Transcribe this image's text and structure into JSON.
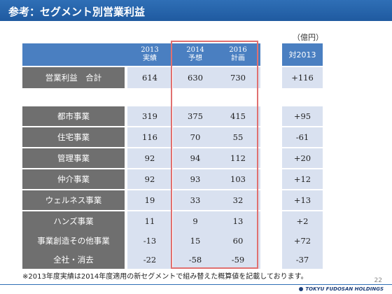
{
  "title": "参考：セグメント別営業利益",
  "unit": "（億円）",
  "columns": [
    {
      "year": "2013",
      "label": "実績"
    },
    {
      "year": "2014",
      "label": "予想"
    },
    {
      "year": "2016",
      "label": "計画"
    }
  ],
  "comparison_header": "対2013",
  "total": {
    "label": "営業利益　合計",
    "values": [
      "614",
      "630",
      "730"
    ],
    "diff": "+116"
  },
  "segments": [
    {
      "label": "都市事業",
      "values": [
        "319",
        "375",
        "415"
      ],
      "diff": "+95"
    },
    {
      "label": "住宅事業",
      "values": [
        "116",
        "70",
        "55"
      ],
      "diff": "-61"
    },
    {
      "label": "管理事業",
      "values": [
        "92",
        "94",
        "112"
      ],
      "diff": "+20"
    },
    {
      "label": "仲介事業",
      "values": [
        "92",
        "93",
        "103"
      ],
      "diff": "+12"
    },
    {
      "label": "ウェルネス事業",
      "values": [
        "19",
        "33",
        "32"
      ],
      "diff": "+13"
    },
    {
      "label": "ハンズ事業",
      "values": [
        "11",
        "9",
        "13"
      ],
      "diff": "+2"
    },
    {
      "label": "事業創造その他事業",
      "values": [
        "-13",
        "15",
        "60"
      ],
      "diff": "+72"
    },
    {
      "label": "全社・消去",
      "values": [
        "-22",
        "-58",
        "-59"
      ],
      "diff": "-37"
    }
  ],
  "footnote": "※2013年度実績は2014年度適用の新セグメントで組み替えた概算値を記載しております。",
  "page_number": "22",
  "brand": "TOKYU FUDOSAN HOLDINGS",
  "colors": {
    "title_bar": "#1f5aa0",
    "header": "#4a7fc1",
    "row_label": "#6f6f6f",
    "cell": "#d9e1f0",
    "highlight_border": "#e07070"
  }
}
